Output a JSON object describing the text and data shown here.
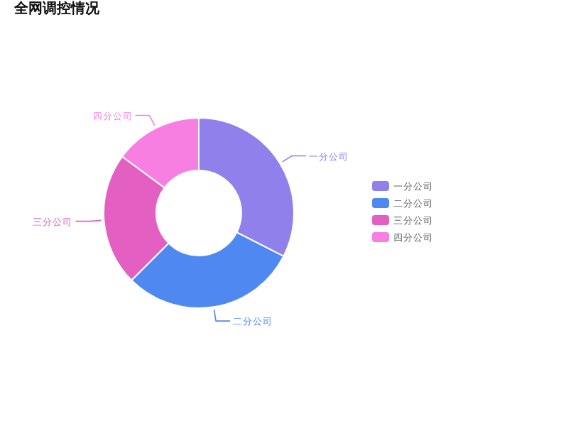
{
  "chart_data": {
    "type": "donut",
    "title": "全网调控情况",
    "categories": [
      "一分公司",
      "二分公司",
      "三分公司",
      "四分公司"
    ],
    "values": [
      32.5,
      30,
      22.6,
      14.9
    ],
    "colors": [
      "#8f80ec",
      "#4f88f0",
      "#e45fc2",
      "#f77fe2"
    ],
    "legend": "right"
  }
}
